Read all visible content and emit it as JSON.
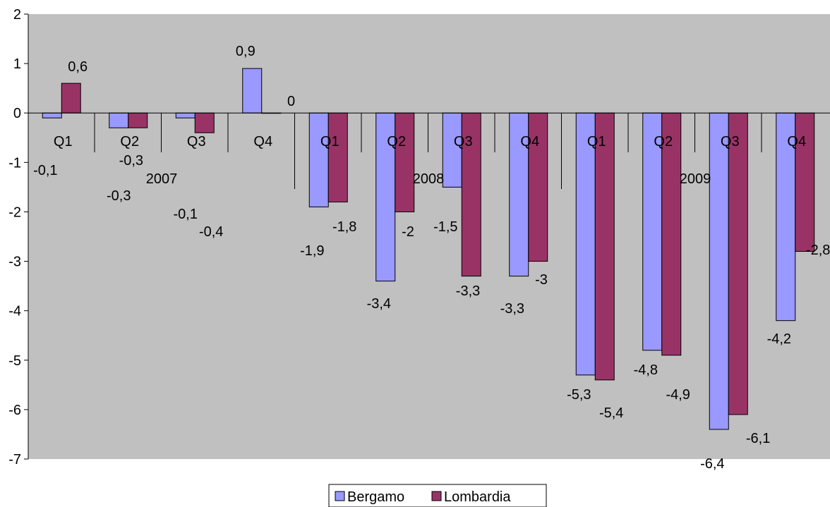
{
  "chart_data": {
    "type": "bar",
    "title": "",
    "xlabel": "",
    "ylabel": "",
    "ylim": [
      -7,
      2
    ],
    "yticks": [
      2,
      1,
      0,
      -1,
      -2,
      -3,
      -4,
      -5,
      -6,
      -7
    ],
    "categories": [
      "Q1",
      "Q2",
      "Q3",
      "Q4",
      "Q1",
      "Q2",
      "Q3",
      "Q4",
      "Q1",
      "Q2",
      "Q3",
      "Q4"
    ],
    "years": [
      {
        "label": "2007",
        "start": 0,
        "end": 3
      },
      {
        "label": "2008",
        "start": 4,
        "end": 7
      },
      {
        "label": "2009",
        "start": 8,
        "end": 11
      }
    ],
    "series": [
      {
        "name": "Bergamo",
        "color": "#9999ff",
        "values": [
          -0.1,
          -0.3,
          -0.1,
          0.9,
          -1.9,
          -3.4,
          -1.5,
          -3.3,
          -5.3,
          -4.8,
          -6.4,
          -4.2
        ],
        "labels": [
          "-0,1",
          "-0,3",
          "-0,1",
          "0,9",
          "-1,9",
          "-3,4",
          "-1,5",
          "-3,3",
          "-5,3",
          "-4,8",
          "-6,4",
          "-4,2"
        ]
      },
      {
        "name": "Lombardia",
        "color": "#993366",
        "values": [
          0.6,
          -0.3,
          -0.4,
          0,
          -1.8,
          -2,
          -3.3,
          -3,
          -5.4,
          -4.9,
          -6.1,
          -2.8
        ],
        "labels": [
          "0,6",
          "-0,3",
          "-0,4",
          "0",
          "-1,8",
          "-2",
          "-3,3",
          "-3",
          "-5,4",
          "-4,9",
          "-6,1",
          "-2,8"
        ]
      }
    ],
    "plot_background": "#c0c0c0",
    "grid": false,
    "legend_position": "bottom"
  }
}
